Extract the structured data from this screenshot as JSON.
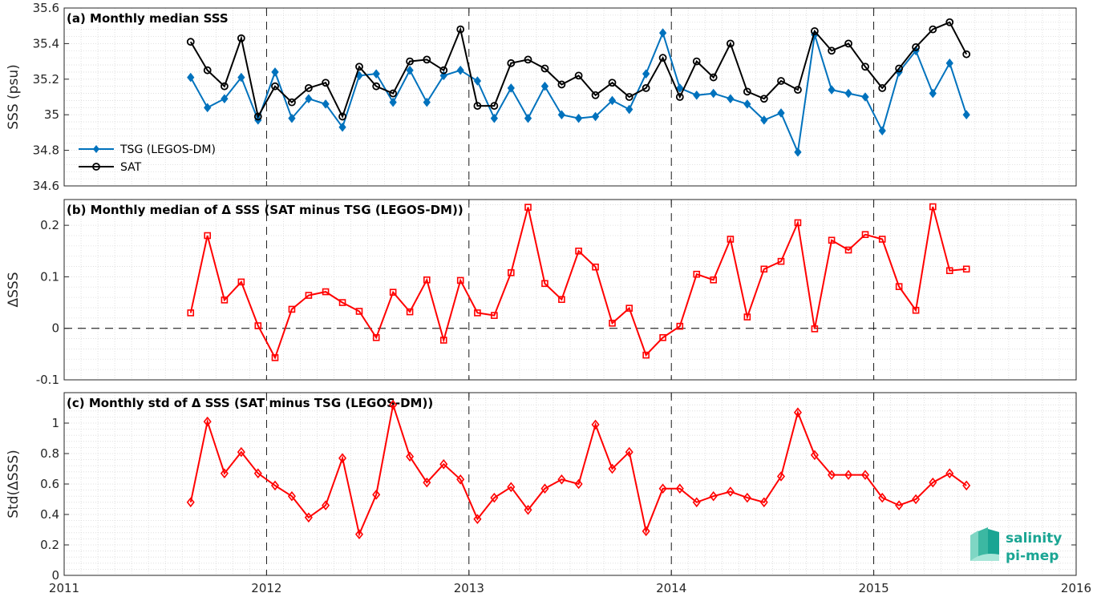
{
  "chart_data": [
    {
      "type": "line",
      "title": "(a) Monthly median SSS",
      "ylabel": "SSS (psu)",
      "xlabel": "",
      "xlim": [
        2011,
        2016
      ],
      "ylim": [
        34.6,
        35.6
      ],
      "yticks": [
        34.6,
        34.8,
        35,
        35.2,
        35.4,
        35.6
      ],
      "ytick_labels": [
        "34.6",
        "34.8",
        "35",
        "35.2",
        "35.4",
        "35.6"
      ],
      "grid": true,
      "legend_location": "lower-left",
      "series": [
        {
          "name": "TSG (LEGOS-DM)",
          "color": "#0072BD",
          "marker": "diamond-filled",
          "points": [
            [
              2011.625,
              35.21
            ],
            [
              2011.708,
              35.04
            ],
            [
              2011.792,
              35.09
            ],
            [
              2011.875,
              35.21
            ],
            [
              2011.958,
              34.97
            ],
            [
              2012.042,
              35.24
            ],
            [
              2012.125,
              34.98
            ],
            [
              2012.208,
              35.09
            ],
            [
              2012.292,
              35.06
            ],
            [
              2012.375,
              34.93
            ],
            [
              2012.458,
              35.22
            ],
            [
              2012.542,
              35.23
            ],
            [
              2012.625,
              35.07
            ],
            [
              2012.708,
              35.25
            ],
            [
              2012.792,
              35.07
            ],
            [
              2012.875,
              35.22
            ],
            [
              2012.958,
              35.25
            ],
            [
              2013.042,
              35.19
            ],
            [
              2013.125,
              34.98
            ],
            [
              2013.208,
              35.15
            ],
            [
              2013.292,
              34.98
            ],
            [
              2013.375,
              35.16
            ],
            [
              2013.458,
              35.0
            ],
            [
              2013.542,
              34.98
            ],
            [
              2013.625,
              34.99
            ],
            [
              2013.708,
              35.08
            ],
            [
              2013.792,
              35.03
            ],
            [
              2013.875,
              35.23
            ],
            [
              2013.958,
              35.46
            ],
            [
              2014.042,
              35.15
            ],
            [
              2014.125,
              35.11
            ],
            [
              2014.208,
              35.12
            ],
            [
              2014.292,
              35.09
            ],
            [
              2014.375,
              35.06
            ],
            [
              2014.458,
              34.97
            ],
            [
              2014.542,
              35.01
            ],
            [
              2014.625,
              34.79
            ],
            [
              2014.708,
              35.45
            ],
            [
              2014.792,
              35.14
            ],
            [
              2014.875,
              35.12
            ],
            [
              2014.958,
              35.1
            ],
            [
              2015.042,
              34.91
            ],
            [
              2015.125,
              35.24
            ],
            [
              2015.208,
              35.36
            ],
            [
              2015.292,
              35.12
            ],
            [
              2015.375,
              35.29
            ],
            [
              2015.458,
              35.0
            ]
          ]
        },
        {
          "name": "SAT",
          "color": "#000000",
          "marker": "circle-open",
          "points": [
            [
              2011.625,
              35.41
            ],
            [
              2011.708,
              35.25
            ],
            [
              2011.792,
              35.16
            ],
            [
              2011.875,
              35.43
            ],
            [
              2011.958,
              34.99
            ],
            [
              2012.042,
              35.16
            ],
            [
              2012.125,
              35.07
            ],
            [
              2012.208,
              35.15
            ],
            [
              2012.292,
              35.18
            ],
            [
              2012.375,
              34.99
            ],
            [
              2012.458,
              35.27
            ],
            [
              2012.542,
              35.16
            ],
            [
              2012.625,
              35.12
            ],
            [
              2012.708,
              35.3
            ],
            [
              2012.792,
              35.31
            ],
            [
              2012.875,
              35.25
            ],
            [
              2012.958,
              35.48
            ],
            [
              2013.042,
              35.05
            ],
            [
              2013.125,
              35.05
            ],
            [
              2013.208,
              35.29
            ],
            [
              2013.292,
              35.31
            ],
            [
              2013.375,
              35.26
            ],
            [
              2013.458,
              35.17
            ],
            [
              2013.542,
              35.22
            ],
            [
              2013.625,
              35.11
            ],
            [
              2013.708,
              35.18
            ],
            [
              2013.792,
              35.1
            ],
            [
              2013.875,
              35.15
            ],
            [
              2013.958,
              35.32
            ],
            [
              2014.042,
              35.1
            ],
            [
              2014.125,
              35.3
            ],
            [
              2014.208,
              35.21
            ],
            [
              2014.292,
              35.4
            ],
            [
              2014.375,
              35.13
            ],
            [
              2014.458,
              35.09
            ],
            [
              2014.542,
              35.19
            ],
            [
              2014.625,
              35.14
            ],
            [
              2014.708,
              35.47
            ],
            [
              2014.792,
              35.36
            ],
            [
              2014.875,
              35.4
            ],
            [
              2014.958,
              35.27
            ],
            [
              2015.042,
              35.15
            ],
            [
              2015.125,
              35.26
            ],
            [
              2015.208,
              35.38
            ],
            [
              2015.292,
              35.48
            ],
            [
              2015.375,
              35.52
            ],
            [
              2015.458,
              35.34
            ]
          ]
        }
      ]
    },
    {
      "type": "line",
      "title": "(b) Monthly median of Δ SSS (SAT minus TSG (LEGOS-DM))",
      "ylabel": "ΔSSS",
      "xlabel": "",
      "xlim": [
        2011,
        2016
      ],
      "ylim": [
        -0.1,
        0.25
      ],
      "yticks": [
        -0.1,
        0,
        0.1,
        0.2
      ],
      "ytick_labels": [
        "-0.1",
        "0",
        "0.1",
        "0.2"
      ],
      "grid": true,
      "zero_line": true,
      "series": [
        {
          "color": "#FF0000",
          "marker": "square-open",
          "points": [
            [
              2011.625,
              0.03
            ],
            [
              2011.708,
              0.18
            ],
            [
              2011.792,
              0.055
            ],
            [
              2011.875,
              0.09
            ],
            [
              2011.958,
              0.005
            ],
            [
              2012.042,
              -0.057
            ],
            [
              2012.125,
              0.037
            ],
            [
              2012.208,
              0.064
            ],
            [
              2012.292,
              0.071
            ],
            [
              2012.375,
              0.05
            ],
            [
              2012.458,
              0.033
            ],
            [
              2012.542,
              -0.018
            ],
            [
              2012.625,
              0.07
            ],
            [
              2012.708,
              0.032
            ],
            [
              2012.792,
              0.094
            ],
            [
              2012.875,
              -0.023
            ],
            [
              2012.958,
              0.093
            ],
            [
              2013.042,
              0.03
            ],
            [
              2013.125,
              0.025
            ],
            [
              2013.208,
              0.108
            ],
            [
              2013.292,
              0.235
            ],
            [
              2013.375,
              0.087
            ],
            [
              2013.458,
              0.056
            ],
            [
              2013.542,
              0.15
            ],
            [
              2013.625,
              0.119
            ],
            [
              2013.708,
              0.01
            ],
            [
              2013.792,
              0.039
            ],
            [
              2013.875,
              -0.052
            ],
            [
              2013.958,
              -0.018
            ],
            [
              2014.042,
              0.004
            ],
            [
              2014.125,
              0.105
            ],
            [
              2014.208,
              0.094
            ],
            [
              2014.292,
              0.173
            ],
            [
              2014.375,
              0.022
            ],
            [
              2014.458,
              0.115
            ],
            [
              2014.542,
              0.13
            ],
            [
              2014.625,
              0.205
            ],
            [
              2014.708,
              -0.001
            ],
            [
              2014.792,
              0.171
            ],
            [
              2014.875,
              0.152
            ],
            [
              2014.958,
              0.182
            ],
            [
              2015.042,
              0.173
            ],
            [
              2015.125,
              0.081
            ],
            [
              2015.208,
              0.035
            ],
            [
              2015.292,
              0.236
            ],
            [
              2015.375,
              0.112
            ],
            [
              2015.458,
              0.115
            ]
          ]
        }
      ]
    },
    {
      "type": "line",
      "title": "(c) Monthly std of Δ SSS (SAT minus TSG (LEGOS-DM))",
      "ylabel": "Std(ΔSSS)",
      "xlabel": "",
      "xlim": [
        2011,
        2016
      ],
      "ylim": [
        0,
        1.2
      ],
      "yticks": [
        0,
        0.2,
        0.4,
        0.6,
        0.8,
        1
      ],
      "ytick_labels": [
        "0",
        "0.2",
        "0.4",
        "0.6",
        "0.8",
        "1"
      ],
      "xticks": [
        2011,
        2012,
        2013,
        2014,
        2015,
        2016
      ],
      "xtick_labels": [
        "2011",
        "2012",
        "2013",
        "2014",
        "2015",
        "2016"
      ],
      "grid": true,
      "series": [
        {
          "color": "#FF0000",
          "marker": "diamond-open",
          "points": [
            [
              2011.625,
              0.48
            ],
            [
              2011.708,
              1.01
            ],
            [
              2011.792,
              0.67
            ],
            [
              2011.875,
              0.81
            ],
            [
              2011.958,
              0.67
            ],
            [
              2012.042,
              0.59
            ],
            [
              2012.125,
              0.52
            ],
            [
              2012.208,
              0.38
            ],
            [
              2012.292,
              0.46
            ],
            [
              2012.375,
              0.77
            ],
            [
              2012.458,
              0.27
            ],
            [
              2012.542,
              0.53
            ],
            [
              2012.625,
              1.12
            ],
            [
              2012.708,
              0.78
            ],
            [
              2012.792,
              0.61
            ],
            [
              2012.875,
              0.73
            ],
            [
              2012.958,
              0.63
            ],
            [
              2013.042,
              0.37
            ],
            [
              2013.125,
              0.51
            ],
            [
              2013.208,
              0.58
            ],
            [
              2013.292,
              0.43
            ],
            [
              2013.375,
              0.57
            ],
            [
              2013.458,
              0.63
            ],
            [
              2013.542,
              0.6
            ],
            [
              2013.625,
              0.99
            ],
            [
              2013.708,
              0.7
            ],
            [
              2013.792,
              0.81
            ],
            [
              2013.875,
              0.29
            ],
            [
              2013.958,
              0.57
            ],
            [
              2014.042,
              0.57
            ],
            [
              2014.125,
              0.48
            ],
            [
              2014.208,
              0.52
            ],
            [
              2014.292,
              0.55
            ],
            [
              2014.375,
              0.51
            ],
            [
              2014.458,
              0.48
            ],
            [
              2014.542,
              0.65
            ],
            [
              2014.625,
              1.07
            ],
            [
              2014.708,
              0.79
            ],
            [
              2014.792,
              0.66
            ],
            [
              2014.875,
              0.66
            ],
            [
              2014.958,
              0.66
            ],
            [
              2015.042,
              0.51
            ],
            [
              2015.125,
              0.46
            ],
            [
              2015.208,
              0.5
            ],
            [
              2015.292,
              0.61
            ],
            [
              2015.375,
              0.67
            ],
            [
              2015.458,
              0.59
            ]
          ]
        }
      ]
    }
  ],
  "logo": {
    "line1": "salinity",
    "line2": "pi-mep",
    "color": "#1aa593"
  }
}
